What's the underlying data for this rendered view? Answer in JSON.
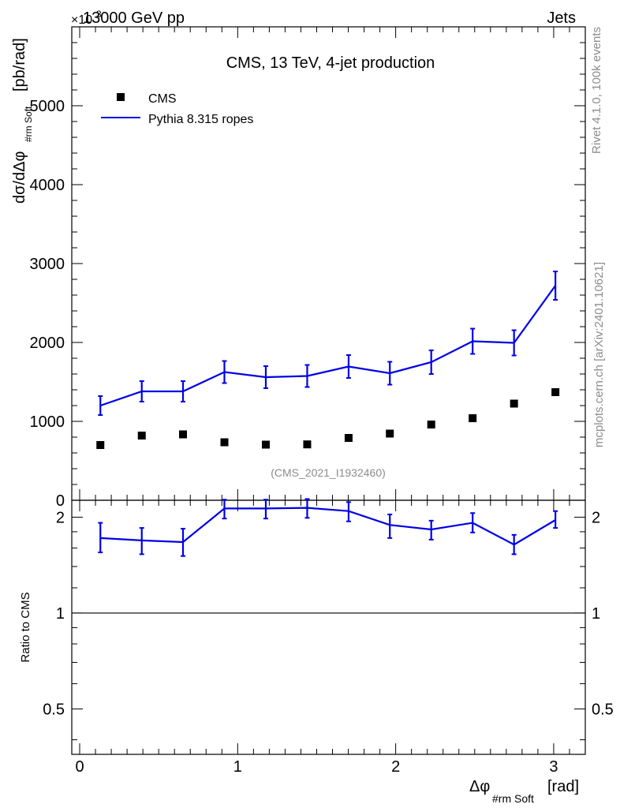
{
  "header": {
    "beam": "13000 GeV pp",
    "category": "Jets",
    "exponent_prefix": "×10",
    "exponent": "3"
  },
  "side_labels": {
    "rivet": "Rivet 4.1.0,  100k events",
    "mcplots": "mcplots.cern.ch [arXiv:2401.10621]"
  },
  "watermark": "(CMS_2021_I1932460)",
  "colors": {
    "mc": "#0000e6",
    "data": "#000000",
    "grey_text": "#8c8c8c"
  },
  "chart_data": [
    {
      "type": "scatter",
      "title": "CMS, 13 TeV, 4-jet production",
      "ylabel_main": "dσ/dΔφ",
      "ylabel_sub": "#rm Soft",
      "ylabel_unit": "[pb/rad]",
      "xlim": [
        -0.05,
        3.2
      ],
      "ylim": [
        0,
        6000
      ],
      "y_scale_note": "values in units of 10^3 pb/rad",
      "yticks": [
        0,
        1000,
        2000,
        3000,
        4000,
        5000
      ],
      "ytick_labels": [
        "0",
        "1000",
        "2000",
        "3000",
        "4000",
        "5000"
      ],
      "legend_position": "top-left",
      "x": [
        0.131,
        0.393,
        0.654,
        0.916,
        1.178,
        1.44,
        1.702,
        1.963,
        2.225,
        2.487,
        2.749,
        3.011
      ],
      "series": [
        {
          "name": "CMS",
          "style": "markers",
          "values": [
            700,
            820,
            835,
            735,
            705,
            708,
            790,
            845,
            960,
            1040,
            1225,
            1370
          ]
        },
        {
          "name": "Pythia 8.315 ropes",
          "style": "line",
          "values": [
            1200,
            1380,
            1380,
            1625,
            1560,
            1575,
            1695,
            1610,
            1750,
            2015,
            1995,
            2720
          ],
          "errors": [
            120,
            130,
            130,
            140,
            140,
            140,
            145,
            145,
            150,
            160,
            160,
            180
          ]
        }
      ]
    },
    {
      "type": "line",
      "ylabel": "Ratio to CMS",
      "xlabel_main": "Δφ",
      "xlabel_sub": "#rm Soft",
      "xlabel_unit": "[rad]",
      "xlim": [
        -0.05,
        3.2
      ],
      "ylim": [
        0.36,
        2.26
      ],
      "y_scale": "log",
      "yticks": [
        0.5,
        1,
        2
      ],
      "ytick_labels": [
        "0.5",
        "1",
        "2"
      ],
      "xticks": [
        0,
        1,
        2,
        3
      ],
      "xtick_labels": [
        "0",
        "1",
        "2",
        "3"
      ],
      "reference_line": 1,
      "x": [
        0.131,
        0.393,
        0.654,
        0.916,
        1.178,
        1.44,
        1.702,
        1.963,
        2.225,
        2.487,
        2.749,
        3.011
      ],
      "series": [
        {
          "name": "Pythia 8.315 ropes / CMS",
          "values": [
            1.72,
            1.69,
            1.67,
            2.13,
            2.13,
            2.14,
            2.09,
            1.89,
            1.83,
            1.92,
            1.64,
            1.96
          ],
          "err_low": [
            1.55,
            1.53,
            1.51,
            1.98,
            1.98,
            1.99,
            1.94,
            1.72,
            1.7,
            1.79,
            1.53,
            1.85
          ],
          "err_high": [
            1.92,
            1.85,
            1.84,
            2.27,
            2.27,
            2.28,
            2.23,
            2.04,
            1.95,
            2.06,
            1.76,
            2.09
          ]
        }
      ]
    }
  ]
}
